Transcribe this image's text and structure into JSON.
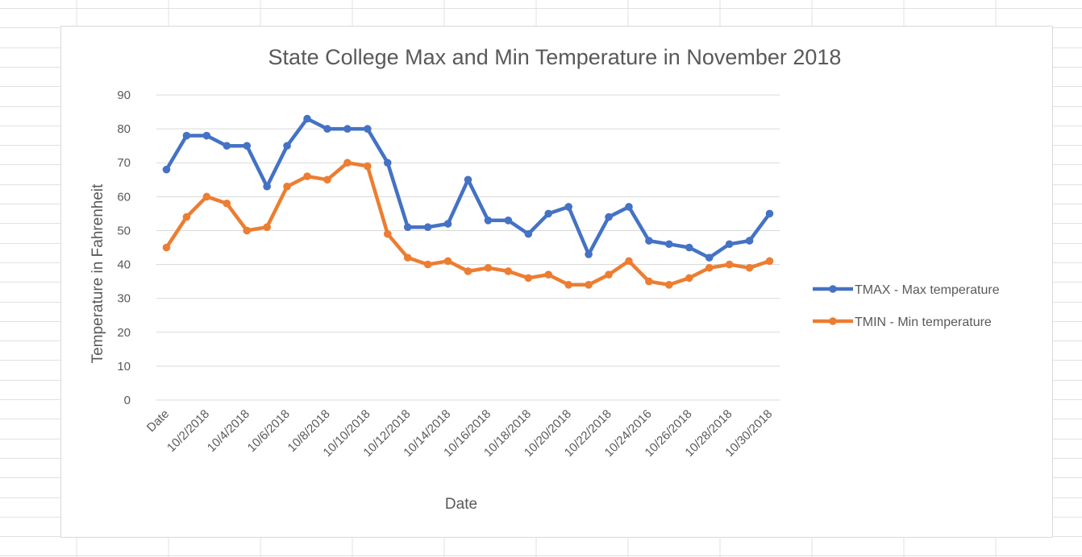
{
  "chart_data": {
    "type": "line",
    "title": "State College Max and Min Temperature in November 2018",
    "xlabel": "Date",
    "ylabel": "Temperature in Fahrenheit",
    "ylim": [
      0,
      90
    ],
    "yticks": [
      "0",
      "10",
      "20",
      "30",
      "40",
      "50",
      "60",
      "70",
      "80",
      "90"
    ],
    "grid": true,
    "legend_position": "right",
    "categories": [
      "Date",
      "",
      "10/2/2018",
      "",
      "10/4/2018",
      "",
      "10/6/2018",
      "",
      "10/8/2018",
      "",
      "10/10/2018",
      "",
      "10/12/2018",
      "",
      "10/14/2018",
      "",
      "10/16/2018",
      "",
      "10/18/2018",
      "",
      "10/20/2018",
      "",
      "10/22/2018",
      "",
      "10/24/2016",
      "",
      "10/26/2018",
      "",
      "10/28/2018",
      "",
      "10/30/2018"
    ],
    "series": [
      {
        "name": "TMAX - Max temperature",
        "color": "#4472C4",
        "values": [
          68,
          78,
          78,
          75,
          75,
          63,
          75,
          83,
          80,
          80,
          80,
          70,
          51,
          51,
          52,
          65,
          53,
          53,
          49,
          55,
          57,
          43,
          54,
          57,
          47,
          46,
          45,
          42,
          46,
          47,
          55
        ]
      },
      {
        "name": "TMIN - Min temperature",
        "color": "#ED7D31",
        "values": [
          45,
          54,
          60,
          58,
          50,
          51,
          63,
          66,
          65,
          70,
          69,
          49,
          42,
          40,
          41,
          38,
          39,
          38,
          36,
          37,
          34,
          34,
          37,
          41,
          35,
          34,
          36,
          39,
          40,
          39,
          41
        ]
      }
    ]
  }
}
